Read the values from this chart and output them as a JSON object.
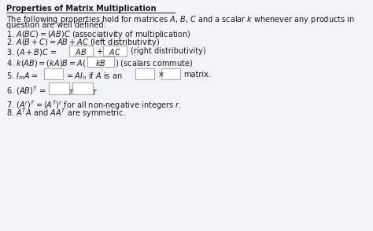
{
  "title": "Properties of Matrix Multiplication",
  "bg_color": "#d4dde8",
  "content_bg": "#f0f3f7",
  "text_color": "#1a1a1a",
  "box_facecolor": "#ffffff",
  "box_edgecolor": "#aaaaaa",
  "figsize": [
    4.74,
    2.94
  ],
  "dpi": 100,
  "lines": [
    "1. $A(BC) = (AB)C$ (associativity of multiplication)",
    "2. $A(B+C) = AB + AC$ (left distributivity)",
    "7. $(A^r)^T = (A^T)^r$ for all non-negative integers $r$.",
    "8. $A^T A$ and $AA^T$ are symmetric."
  ]
}
